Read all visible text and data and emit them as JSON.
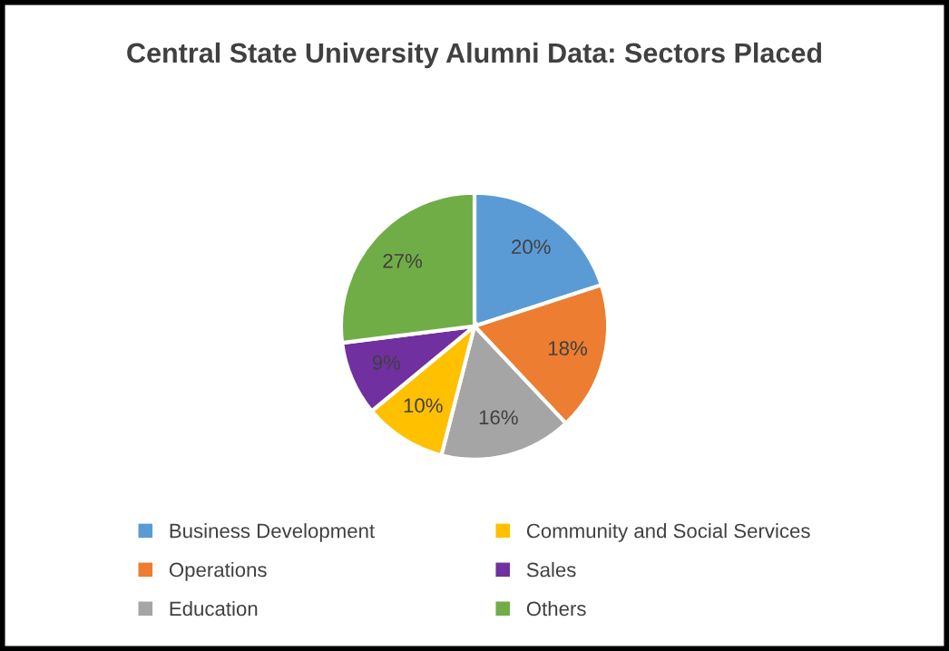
{
  "chart_data": {
    "type": "pie",
    "title": "Central State University Alumni Data: Sectors Placed",
    "categories": [
      "Business Development",
      "Operations",
      "Education",
      "Community and Social Services",
      "Sales",
      "Others"
    ],
    "values": [
      20,
      18,
      16,
      10,
      9,
      27
    ],
    "value_labels": [
      "20%",
      "18%",
      "16%",
      "10%",
      "9%",
      "27%"
    ],
    "colors": [
      "#5b9bd5",
      "#ed7d31",
      "#a5a5a5",
      "#ffc000",
      "#7030a0",
      "#70ad47"
    ],
    "legend": "bottom"
  }
}
